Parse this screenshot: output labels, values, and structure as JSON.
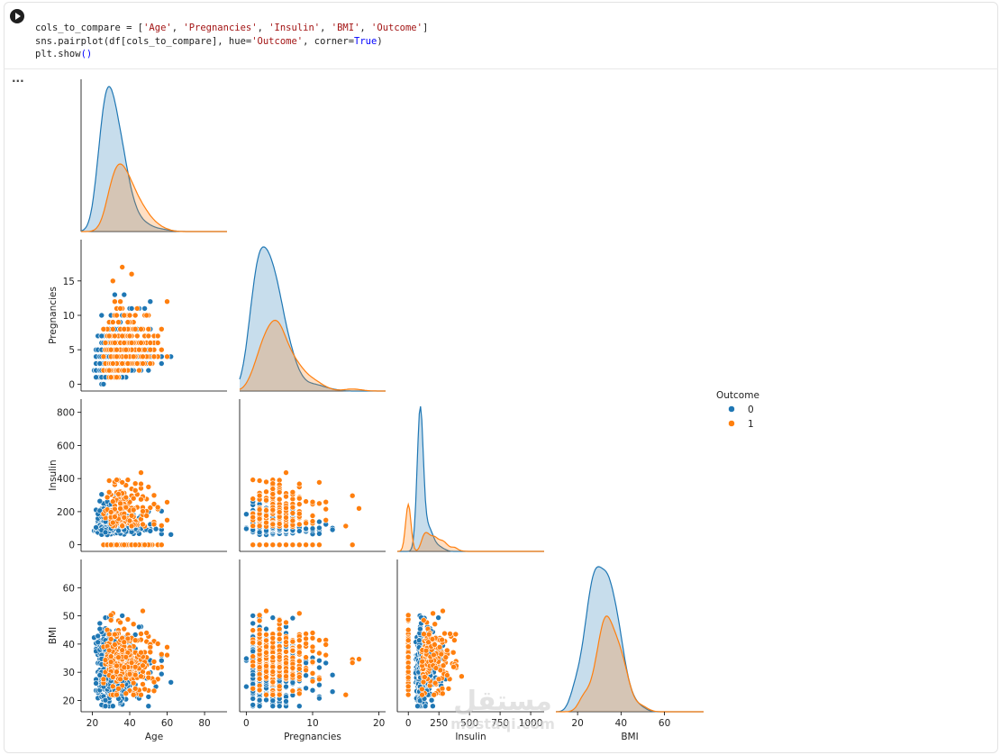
{
  "code": {
    "line1_a": "cols_to_compare = [",
    "line1_items": [
      "'Age'",
      "'Pregnancies'",
      "'Insulin'",
      "'BMI'",
      "'Outcome'"
    ],
    "line2_a": "sns.pairplot(df[cols_to_compare], hue=",
    "line2_hue": "'Outcome'",
    "line2_b": ", corner=",
    "line2_true": "True",
    "line2_c": ")",
    "line3_a": "plt.show",
    "line3_b": "()"
  },
  "output_menu_glyph": "...",
  "watermark": {
    "arabic": "مستقل",
    "latin": "mostaqi.com"
  },
  "colors": {
    "class0": "#1f77b4",
    "class1": "#ff7f0e"
  },
  "chart_data": {
    "type": "scatter",
    "kind": "pairplot",
    "corner": true,
    "hue": "Outcome",
    "variables": [
      "Age",
      "Pregnancies",
      "Insulin",
      "BMI"
    ],
    "legend": {
      "title": "Outcome",
      "entries": [
        "0",
        "1"
      ],
      "placement": "right"
    },
    "axes": {
      "Age": {
        "label": "Age",
        "range": [
          14,
          92
        ],
        "ticks": [
          20,
          40,
          60,
          80
        ]
      },
      "Pregnancies": {
        "label": "Pregnancies",
        "range": [
          -1,
          21
        ],
        "ticks": [
          0,
          5,
          10,
          15
        ],
        "bottom_ticks": [
          0,
          10,
          20
        ]
      },
      "Insulin": {
        "label": "Insulin",
        "range": [
          -40,
          880
        ],
        "ticks": [
          0,
          200,
          400,
          600,
          800
        ],
        "bottom_range": [
          -90,
          1110
        ],
        "bottom_ticks": [
          0,
          250,
          500,
          750,
          1000
        ]
      },
      "BMI": {
        "label": "BMI",
        "range": [
          16,
          70
        ],
        "ticks": [
          20,
          30,
          40,
          50,
          60
        ],
        "bottom_range": [
          10,
          78
        ],
        "bottom_ticks": [
          20,
          40,
          60
        ]
      }
    },
    "diagonal": "kde",
    "grid": false
  }
}
